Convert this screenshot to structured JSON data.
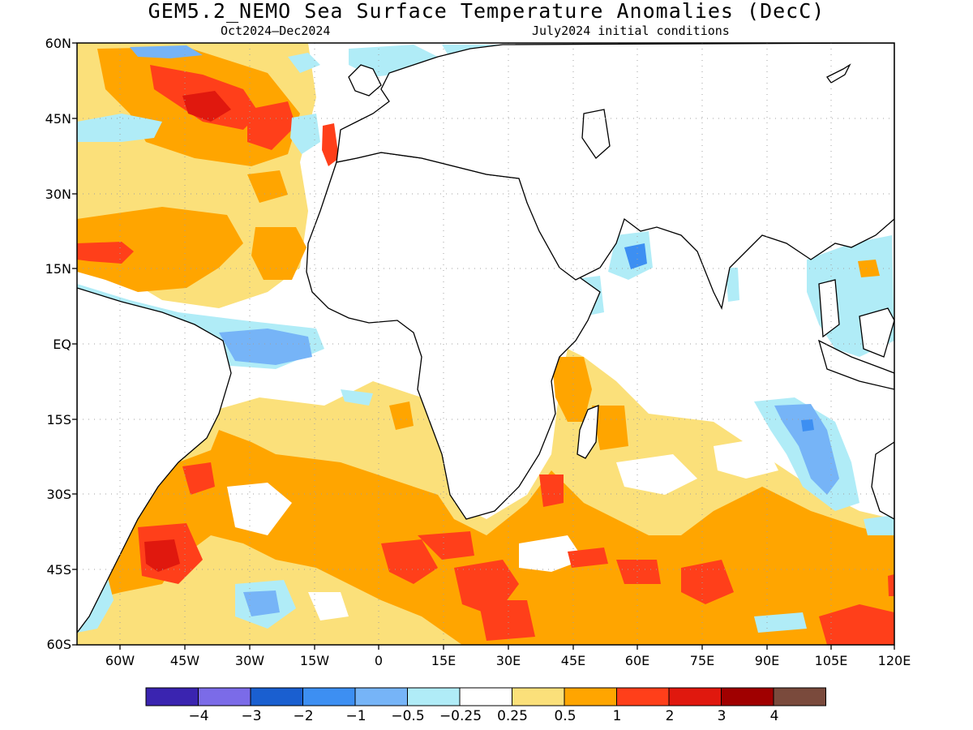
{
  "title": "GEM5.2_NEMO Sea Surface Temperature Anomalies (DecC)",
  "period": "Oct2024–Dec2024",
  "init": "July2024 initial conditions",
  "lat_labels": [
    "60N",
    "45N",
    "30N",
    "15N",
    "EQ",
    "15S",
    "30S",
    "45S",
    "60S"
  ],
  "lon_labels": [
    "60W",
    "45W",
    "30W",
    "15W",
    "0",
    "15E",
    "30E",
    "45E",
    "60E",
    "75E",
    "90E",
    "105E",
    "120E"
  ],
  "colorbar": {
    "colors": [
      "#3a24b0",
      "#7b6be8",
      "#1a5fd0",
      "#3d8ff2",
      "#76b4f7",
      "#b0ecf7",
      "#ffffff",
      "#fbe07a",
      "#ffa500",
      "#ff3f1a",
      "#e0180e",
      "#a00000",
      "#7a4a3c"
    ],
    "labels": [
      "−4",
      "−3",
      "−2",
      "−1",
      "−0.5",
      "−0.25",
      "0.25",
      "0.5",
      "1",
      "2",
      "3",
      "4"
    ]
  }
}
